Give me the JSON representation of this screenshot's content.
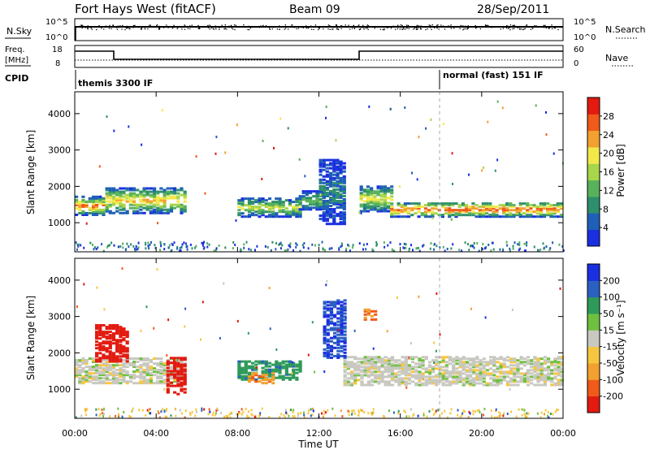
{
  "header": {
    "station": "Fort Hays West (fitACF)",
    "beam": "Beam 09",
    "date": "28/Sep/2011"
  },
  "panels": {
    "nsky": {
      "label": "N.Sky",
      "ylabel_top": "10^5",
      "ylabel_bottom": "10^0",
      "right_label": "N.Search",
      "right_top": "10^5",
      "right_bottom": "10^0"
    },
    "freq": {
      "label_line1": "Freq.",
      "label_line2": "[MHz]",
      "left_top": "18",
      "left_bottom": "8",
      "right_top": "60",
      "right_bottom": "0",
      "right_label": "Nave"
    },
    "cpid": {
      "label": "CPID",
      "mode1": "themis 3300 IF",
      "mode2": "normal (fast) 151 IF"
    }
  },
  "colors": {
    "power": [
      "#1a2fe0",
      "#1f5fb8",
      "#2e8f6c",
      "#58b25c",
      "#a8d54a",
      "#f2e84a",
      "#f2a030",
      "#f05a1a",
      "#e21a10"
    ],
    "velocity": [
      "#e21a10",
      "#f05a1a",
      "#f2a030",
      "#f7c640",
      "#c8c8c0",
      "#70c040",
      "#2e9a5a",
      "#2a60c0",
      "#1a2fe0"
    ]
  },
  "chart_data": [
    {
      "type": "heatmap",
      "name": "power",
      "xlabel": "",
      "ylabel": "Slant Range [km]",
      "xlim": [
        0,
        24
      ],
      "ylim": [
        200,
        4600
      ],
      "yticks": [
        "1000",
        "2000",
        "3000",
        "4000"
      ],
      "colorbar": {
        "label": "Power [dB]",
        "ticks": [
          "4",
          "8",
          "12",
          "16",
          "20",
          "24",
          "28"
        ],
        "range": [
          0,
          32
        ]
      },
      "echo_bands": [
        {
          "t0": 0.0,
          "t1": 1.5,
          "r_center": 1500,
          "r_halfwidth": 250,
          "peak": 26
        },
        {
          "t0": 1.5,
          "t1": 5.4,
          "r_center": 1650,
          "r_halfwidth": 350,
          "peak": 22
        },
        {
          "t0": 8.0,
          "t1": 11.0,
          "r_center": 1450,
          "r_halfwidth": 250,
          "peak": 18
        },
        {
          "t0": 11.0,
          "t1": 12.2,
          "r_center": 1650,
          "r_halfwidth": 250,
          "peak": 14
        },
        {
          "t0": 12.0,
          "t1": 13.2,
          "r_center": 1900,
          "r_halfwidth": 900,
          "peak": 8
        },
        {
          "t0": 14.0,
          "t1": 15.5,
          "r_center": 1700,
          "r_halfwidth": 350,
          "peak": 20
        },
        {
          "t0": 15.5,
          "t1": 24.0,
          "r_center": 1400,
          "r_halfwidth": 200,
          "peak": 28
        }
      ]
    },
    {
      "type": "heatmap",
      "name": "velocity",
      "xlabel": "Time UT",
      "ylabel": "Slant Range [km]",
      "xlim": [
        0,
        24
      ],
      "ylim": [
        200,
        4600
      ],
      "xticks": [
        "00:00",
        "04:00",
        "08:00",
        "12:00",
        "16:00",
        "20:00",
        "00:00"
      ],
      "yticks": [
        "1000",
        "2000",
        "3000",
        "4000"
      ],
      "colorbar": {
        "label": "Velocity [m s⁻¹]",
        "ticks": [
          "-200",
          "-100",
          "-50",
          "-15",
          "15",
          "50",
          "100",
          "200"
        ]
      },
      "echo_bands": [
        {
          "t0": 0.0,
          "t1": 5.4,
          "r_center": 1550,
          "r_halfwidth": 350,
          "velocity": 0
        },
        {
          "t0": 1.0,
          "t1": 2.6,
          "r_center": 2300,
          "r_halfwidth": 500,
          "velocity": -220
        },
        {
          "t0": 4.5,
          "t1": 5.5,
          "r_center": 1400,
          "r_halfwidth": 500,
          "velocity": -220
        },
        {
          "t0": 8.0,
          "t1": 11.0,
          "r_center": 1550,
          "r_halfwidth": 250,
          "velocity": 60
        },
        {
          "t0": 8.5,
          "t1": 9.8,
          "r_center": 1350,
          "r_halfwidth": 150,
          "velocity": -60
        },
        {
          "t0": 12.2,
          "t1": 13.2,
          "r_center": 2700,
          "r_halfwidth": 800,
          "velocity": 150
        },
        {
          "t0": 13.2,
          "t1": 24.0,
          "r_center": 1550,
          "r_halfwidth": 400,
          "velocity": 0
        },
        {
          "t0": 14.2,
          "t1": 14.7,
          "r_center": 3100,
          "r_halfwidth": 150,
          "velocity": -80
        }
      ]
    }
  ]
}
